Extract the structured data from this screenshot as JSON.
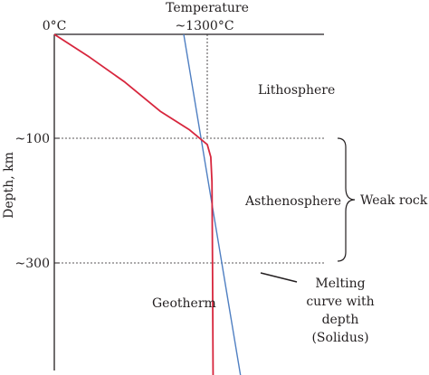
{
  "chart_data": {
    "type": "line",
    "xlabel": "Temperature",
    "ylabel": "Depth, km",
    "x_tick_labels": [
      "0°C",
      "~1300°C"
    ],
    "y_tick_labels": [
      "~100",
      "~300"
    ],
    "y_axis_inverted": true,
    "regions": {
      "lithosphere": "Lithosphere",
      "asthenosphere": "Asthenosphere"
    },
    "annotations": {
      "weak_rock": "Weak rock",
      "solidus_line1": "Melting",
      "solidus_line2": "curve with",
      "solidus_line3": "depth",
      "solidus_line4": "(Solidus)"
    },
    "series": [
      {
        "name": "Geotherm",
        "color": "#d7263d",
        "x": [
          0,
          300,
          600,
          900,
          1150,
          1300,
          1330,
          1340,
          1345,
          1350
        ],
        "y": [
          0,
          22,
          46,
          74,
          92,
          110,
          130,
          170,
          300,
          500
        ]
      },
      {
        "name": "",
        "color": "#4f7fc2",
        "x": [
          1100,
          1600
        ],
        "y": [
          0,
          500
        ]
      }
    ],
    "reference_lines": {
      "depth": [
        100,
        300
      ],
      "temperature": [
        1300
      ]
    },
    "xlim": [
      0,
      1600
    ],
    "ylim": [
      0,
      500
    ],
    "grid": false,
    "legend": "none"
  },
  "colors": {
    "axis": "#231f20",
    "text": "#231f20",
    "reference": "#231f20"
  }
}
